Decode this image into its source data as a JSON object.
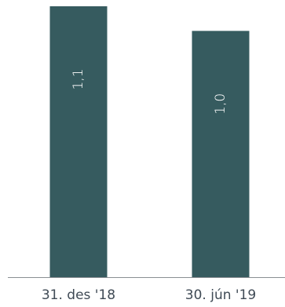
{
  "chart_data": {
    "type": "bar",
    "categories": [
      "31. des '18",
      "30. jún '19"
    ],
    "values": [
      1.1,
      1.0
    ],
    "value_labels": [
      "1,1",
      "1,0"
    ],
    "title": "",
    "xlabel": "",
    "ylabel": "",
    "ylim": [
      0,
      1.1
    ],
    "grid": false,
    "bar_color": "#365b5f",
    "axis_color": "#8a8f93",
    "label_color": "#ffffff",
    "tick_color": "#3f4a55"
  }
}
